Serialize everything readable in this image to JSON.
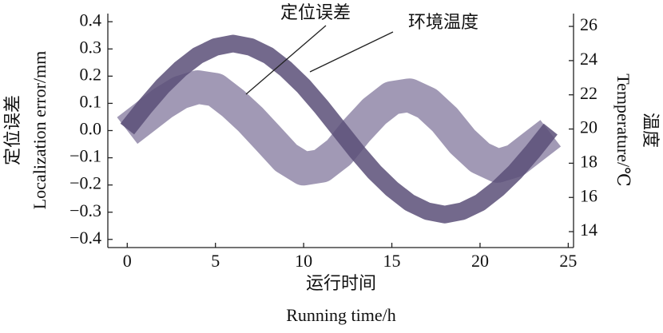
{
  "chart_data": {
    "type": "line",
    "x_label": [
      "运行时间",
      "Running time/h"
    ],
    "y_label": [
      "定位误差",
      "Localization error/mm"
    ],
    "y2_label": [
      "Temperature/℃",
      "温度"
    ],
    "annotations": [
      "定位误差",
      "环境温度"
    ],
    "x": [
      0,
      1,
      2,
      3,
      4,
      5,
      6,
      7,
      8,
      9,
      10,
      11,
      12,
      13,
      14,
      15,
      16,
      17,
      18,
      19,
      20,
      21,
      22,
      23,
      24
    ],
    "series": [
      {
        "name": "定位误差",
        "color": "#8a80a2",
        "values": [
          0.0,
          0.05,
          0.1,
          0.14,
          0.16,
          0.15,
          0.1,
          0.04,
          -0.03,
          -0.1,
          -0.14,
          -0.13,
          -0.08,
          0.0,
          0.07,
          0.12,
          0.13,
          0.1,
          0.04,
          -0.04,
          -0.1,
          -0.13,
          -0.11,
          -0.06,
          -0.01
        ]
      },
      {
        "name": "环境温度",
        "color": "#5b4f78",
        "axis": "y2",
        "values": [
          20,
          21.3,
          22.5,
          23.5,
          24.3,
          24.8,
          25,
          24.8,
          24.3,
          23.5,
          22.5,
          21.3,
          20,
          18.7,
          17.5,
          16.5,
          15.7,
          15.2,
          15,
          15.2,
          15.7,
          16.5,
          17.5,
          18.7,
          20
        ]
      }
    ],
    "xlim": [
      -1.1,
      25.3
    ],
    "xticks": [
      0,
      5,
      10,
      15,
      20,
      25
    ],
    "ylim": [
      -0.43,
      0.43
    ],
    "yticks": [
      {
        "value": 0.4,
        "label": "0.4"
      },
      {
        "value": 0.3,
        "label": "0.3"
      },
      {
        "value": 0.2,
        "label": "0.2"
      },
      {
        "value": 0.1,
        "label": "0.1"
      },
      {
        "value": 0,
        "label": "0.0"
      },
      {
        "value": -0.1,
        "label": "−0.1"
      },
      {
        "value": -0.2,
        "label": "−0.2"
      },
      {
        "value": -0.3,
        "label": "−0.3"
      },
      {
        "value": -0.4,
        "label": "−0.4"
      }
    ],
    "y2lim": [
      13.07,
      26.75
    ],
    "y2ticks": [
      14,
      16,
      18,
      20,
      22,
      24,
      26
    ]
  }
}
